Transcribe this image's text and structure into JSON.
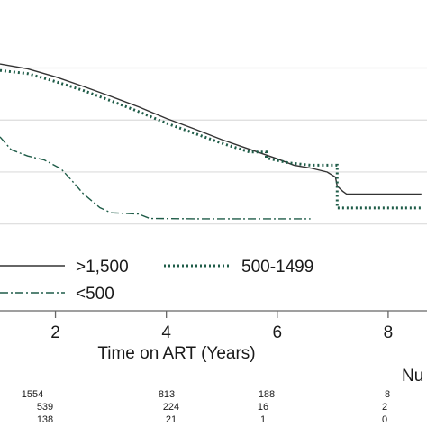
{
  "chart_data": {
    "type": "line",
    "title": "",
    "xlabel": "Time on ART (Years)",
    "ylabel": "",
    "xlim": [
      1.0,
      8.7
    ],
    "x_ticks": [
      "2",
      "4",
      "6",
      "8"
    ],
    "grid": true,
    "series": [
      {
        "name": ">1,500",
        "style": "solid",
        "color": "#333333",
        "points": [
          [
            1.0,
            0.93
          ],
          [
            1.5,
            0.918
          ],
          [
            2.0,
            0.898
          ],
          [
            2.5,
            0.874
          ],
          [
            3.0,
            0.849
          ],
          [
            3.5,
            0.823
          ],
          [
            4.0,
            0.794
          ],
          [
            4.5,
            0.768
          ],
          [
            5.0,
            0.741
          ],
          [
            5.5,
            0.717
          ],
          [
            6.0,
            0.693
          ],
          [
            6.3,
            0.677
          ],
          [
            6.6,
            0.67
          ],
          [
            6.9,
            0.66
          ],
          [
            7.05,
            0.647
          ],
          [
            7.08,
            0.625
          ],
          [
            7.18,
            0.612
          ],
          [
            7.25,
            0.605
          ],
          [
            8.6,
            0.605
          ]
        ]
      },
      {
        "name": "500-1499",
        "style": "dotted",
        "color": "#1f5c48",
        "points": [
          [
            1.0,
            0.914
          ],
          [
            1.5,
            0.906
          ],
          [
            2.0,
            0.886
          ],
          [
            2.5,
            0.864
          ],
          [
            3.0,
            0.838
          ],
          [
            3.5,
            0.811
          ],
          [
            4.0,
            0.782
          ],
          [
            4.5,
            0.757
          ],
          [
            5.0,
            0.732
          ],
          [
            5.5,
            0.71
          ],
          [
            5.8,
            0.71
          ],
          [
            5.8,
            0.695
          ],
          [
            6.2,
            0.683
          ],
          [
            6.6,
            0.677
          ],
          [
            6.6,
            0.677
          ],
          [
            7.08,
            0.677
          ],
          [
            7.08,
            0.57
          ],
          [
            8.6,
            0.57
          ]
        ]
      },
      {
        "name": "<500",
        "style": "dash-dot",
        "color": "#1f5c48",
        "points": [
          [
            1.0,
            0.748
          ],
          [
            1.2,
            0.716
          ],
          [
            1.5,
            0.7
          ],
          [
            1.8,
            0.69
          ],
          [
            2.1,
            0.668
          ],
          [
            2.3,
            0.638
          ],
          [
            2.5,
            0.606
          ],
          [
            2.8,
            0.571
          ],
          [
            3.0,
            0.558
          ],
          [
            3.5,
            0.555
          ],
          [
            3.7,
            0.544
          ],
          [
            4.5,
            0.543
          ],
          [
            5.5,
            0.543
          ],
          [
            6.6,
            0.543
          ]
        ]
      }
    ],
    "legend": [
      {
        "label": ">1,500",
        "style": "solid"
      },
      {
        "label": "500-1499",
        "style": "dotted"
      },
      {
        "label": "<500",
        "style": "dash-dot"
      }
    ],
    "legend_placement": "below plot"
  },
  "risk_table": {
    "header": "Nu",
    "rows": [
      [
        "1554",
        "813",
        "188",
        "8"
      ],
      [
        "539",
        "224",
        "16",
        "2"
      ],
      [
        "138",
        "21",
        "1",
        "0"
      ]
    ]
  }
}
